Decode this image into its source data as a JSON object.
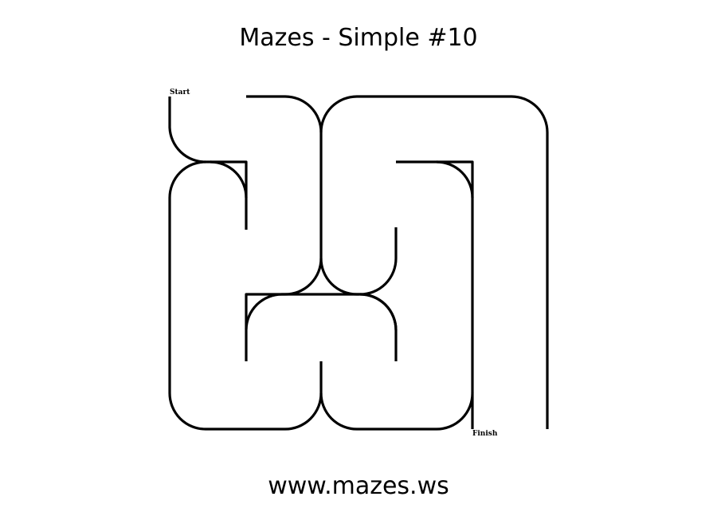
{
  "header": {
    "title": "Mazes - Simple #10"
  },
  "maze": {
    "start_label": "Start",
    "finish_label": "Finish",
    "stroke_color": "#000000"
  },
  "footer": {
    "url": "www.mazes.ws"
  }
}
